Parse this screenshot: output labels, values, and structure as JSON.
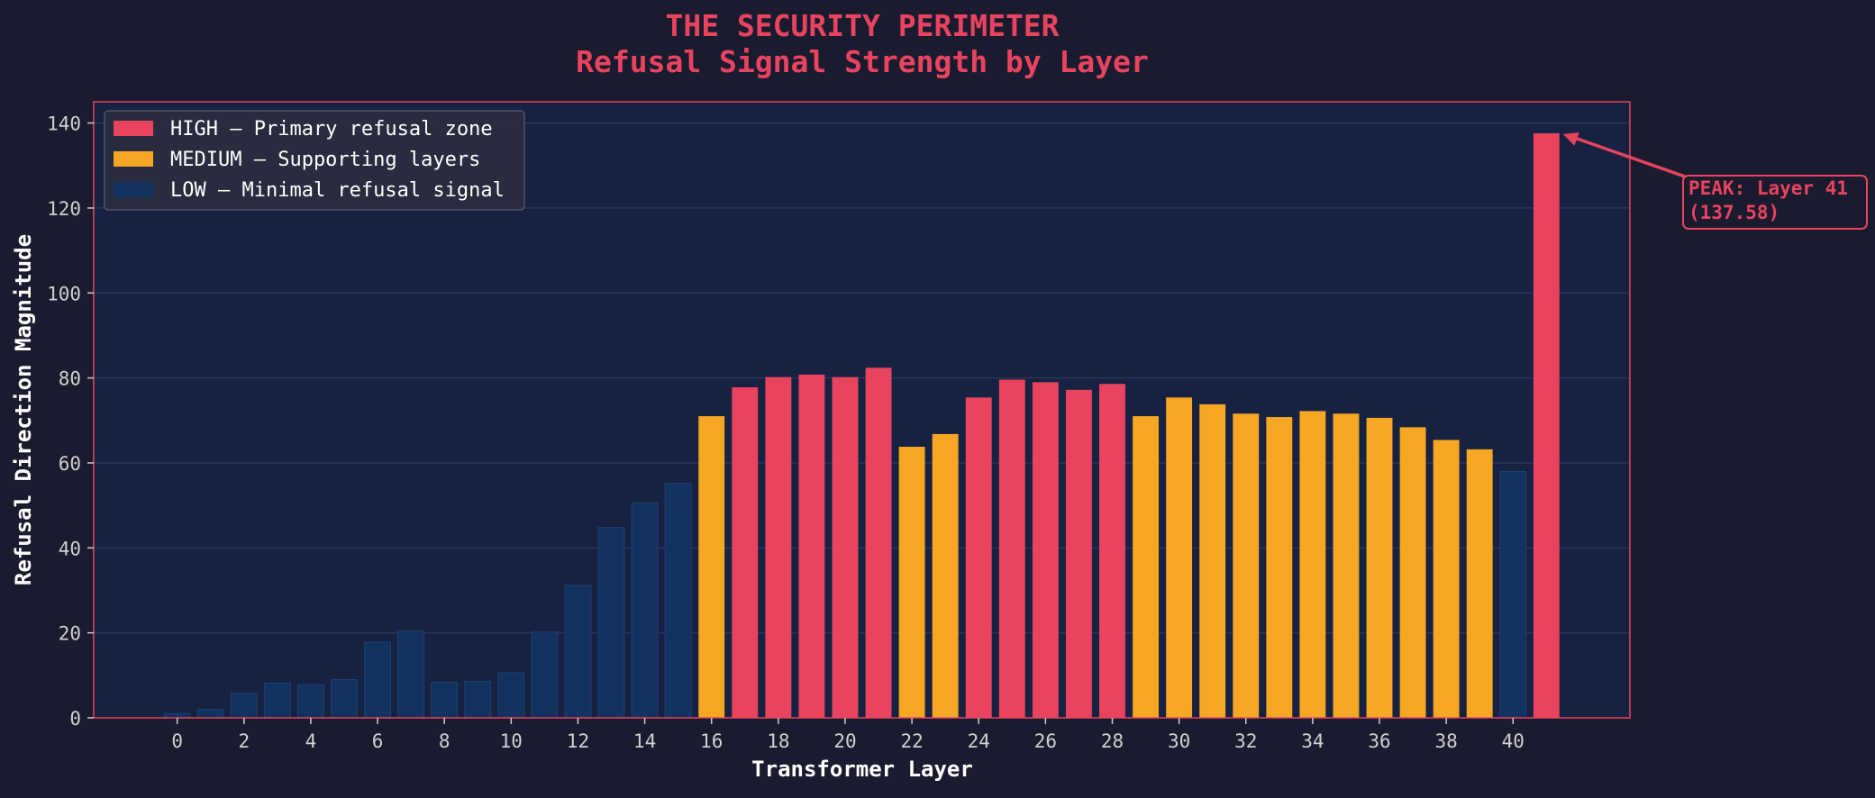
{
  "chart_data": {
    "type": "bar",
    "title": "THE SECURITY PERIMETER",
    "subtitle": "Refusal Signal Strength by Layer",
    "xlabel": "Transformer Layer",
    "ylabel": "Refusal Direction Magnitude",
    "ylim": [
      0,
      145
    ],
    "xlim": [
      -2.5,
      43.5
    ],
    "yticks": [
      0,
      20,
      40,
      60,
      80,
      100,
      120,
      140
    ],
    "xticks": [
      0,
      2,
      4,
      6,
      8,
      10,
      12,
      14,
      16,
      18,
      20,
      22,
      24,
      26,
      28,
      30,
      32,
      34,
      36,
      38,
      40
    ],
    "grid": true,
    "legend_position": "top-left",
    "x": [
      0,
      1,
      2,
      3,
      4,
      5,
      6,
      7,
      8,
      9,
      10,
      11,
      12,
      13,
      14,
      15,
      16,
      17,
      18,
      19,
      20,
      21,
      22,
      23,
      24,
      25,
      26,
      27,
      28,
      29,
      30,
      31,
      32,
      33,
      34,
      35,
      36,
      37,
      38,
      39,
      40,
      41
    ],
    "values": [
      1.0,
      2.0,
      5.8,
      8.2,
      7.8,
      9.0,
      17.8,
      20.4,
      8.4,
      8.6,
      10.6,
      20.2,
      31.2,
      44.8,
      50.6,
      55.2,
      71.0,
      77.8,
      80.2,
      80.8,
      80.2,
      82.4,
      63.8,
      66.8,
      75.4,
      79.6,
      79.0,
      77.2,
      78.6,
      71.0,
      75.4,
      73.8,
      71.6,
      70.8,
      72.2,
      71.6,
      70.6,
      68.4,
      65.4,
      63.2,
      58.0,
      137.58
    ],
    "levels": [
      "low",
      "low",
      "low",
      "low",
      "low",
      "low",
      "low",
      "low",
      "low",
      "low",
      "low",
      "low",
      "low",
      "low",
      "low",
      "low",
      "medium",
      "high",
      "high",
      "high",
      "high",
      "high",
      "medium",
      "medium",
      "high",
      "high",
      "high",
      "high",
      "high",
      "medium",
      "medium",
      "medium",
      "medium",
      "medium",
      "medium",
      "medium",
      "medium",
      "medium",
      "medium",
      "medium",
      "low",
      "high"
    ],
    "series": [
      {
        "key": "high",
        "name": "HIGH — Primary refusal zone",
        "color": "#e8435f"
      },
      {
        "key": "medium",
        "name": "MEDIUM — Supporting layers",
        "color": "#f5a623"
      },
      {
        "key": "low",
        "name": "LOW — Minimal refusal signal",
        "color": "#12335f"
      }
    ],
    "annotation": {
      "line1": "PEAK: Layer 41",
      "line2": "(137.58)",
      "x": 41,
      "y": 137.58,
      "color": "#e8435f"
    }
  }
}
